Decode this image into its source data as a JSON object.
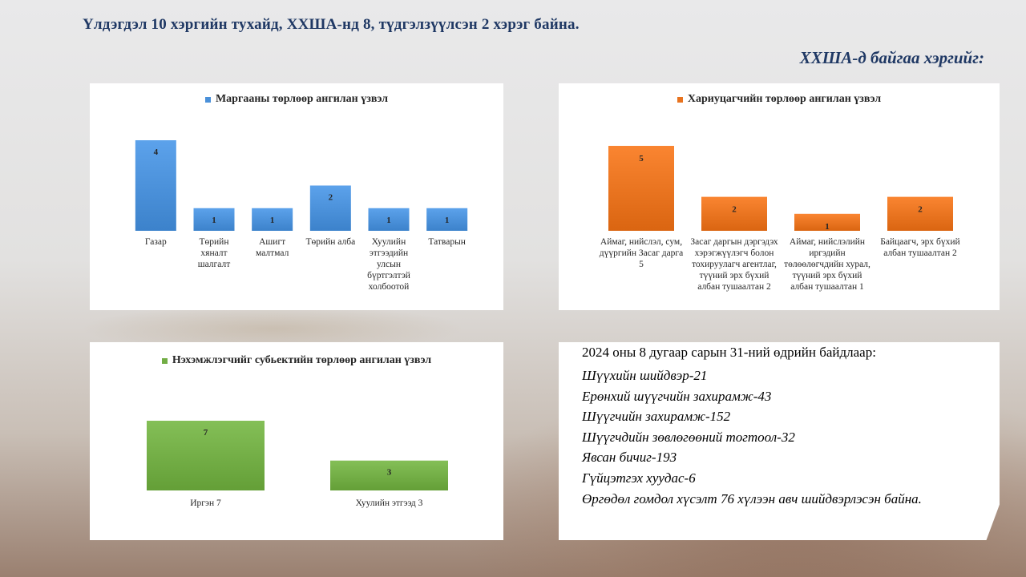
{
  "headline": "Үлдэгдэл 10 хэргийн тухайд,  ХХШA-нд 8, түдгэлзүүлсэн 2 хэрэг байна.",
  "subheadline": "ХХША-д байгаа хэргийг:",
  "colors": {
    "blue": "#4a90d9",
    "orange": "#e8731f",
    "green": "#72ad45",
    "title": "#1f3864"
  },
  "chart_data": [
    {
      "type": "bar",
      "title": "Маргааны төрлөөр ангилан үзвэл",
      "series_name": "Маргааны төрлөөр ангилан үзвэл",
      "color": "#4a90d9",
      "categories": [
        [
          "Газар"
        ],
        [
          "Төрийн",
          "хяналт",
          "шалгалт"
        ],
        [
          "Ашигт",
          "малтмал"
        ],
        [
          "Төрийн алба"
        ],
        [
          "Хуулийн",
          "этгээдийн",
          "улсын",
          "бүртгэлтэй",
          "холбоотой"
        ],
        [
          "Татварын"
        ]
      ],
      "values": [
        4,
        1,
        1,
        2,
        1,
        1
      ],
      "ylim": [
        0,
        4
      ]
    },
    {
      "type": "bar",
      "title": "Хариуцагчийн  төрлөөр ангилан үзвэл",
      "series_name": "Хариуцагчийн  төрлөөр ангилан үзвэл",
      "color": "#e8731f",
      "categories": [
        [
          "Аймаг, нийслэл, сум,",
          "дүүргийн Засаг дарга",
          "5"
        ],
        [
          "Засаг даргын дэргэдэх",
          "хэрэгжүүлэгч болон",
          "тохируулагч агентлаг,",
          "түүний эрх бүхий",
          "албан тушаалтан 2"
        ],
        [
          "Аймаг, нийслэлийн",
          "иргэдийн",
          "төлөөлөгчдийн хурал,",
          "түүний эрх бүхий",
          "албан тушаалтан 1"
        ],
        [
          "Байцаагч, эрх бүхий",
          "албан тушаалтан 2"
        ]
      ],
      "values": [
        5,
        2,
        1,
        2
      ],
      "ylim": [
        0,
        5
      ]
    },
    {
      "type": "bar",
      "title": "Нэхэмжлэгчийг субьектийн төрлөөр ангилан үзвэл",
      "series_name": "Нэхэмжлэгчийг субьектийн төрлөөр ангилан үзвэл",
      "color": "#72ad45",
      "categories": [
        [
          "Иргэн 7"
        ],
        [
          "Хуулийн этгээд 3"
        ]
      ],
      "values": [
        7,
        3
      ],
      "ylim": [
        0,
        7
      ]
    }
  ],
  "stats_panel": {
    "intro": "2024  оны 8 дугаар сарын 31-ний  өдрийн байдлаар:",
    "items": [
      "Шүүхийн шийдвэр-21",
      "Ерөнхий шүүгчийн захирамж-43",
      "Шүүгчийн захирамж-152",
      "Шүүгчдийн зөвлөгөөний тогтоол-32",
      "Явсан бичиг-193",
      "Гүйцэтгэх хуудас-6",
      "Өргөдөл гомдол хүсэлт 76 хүлээн авч шийдвэрлэсэн байна."
    ]
  }
}
